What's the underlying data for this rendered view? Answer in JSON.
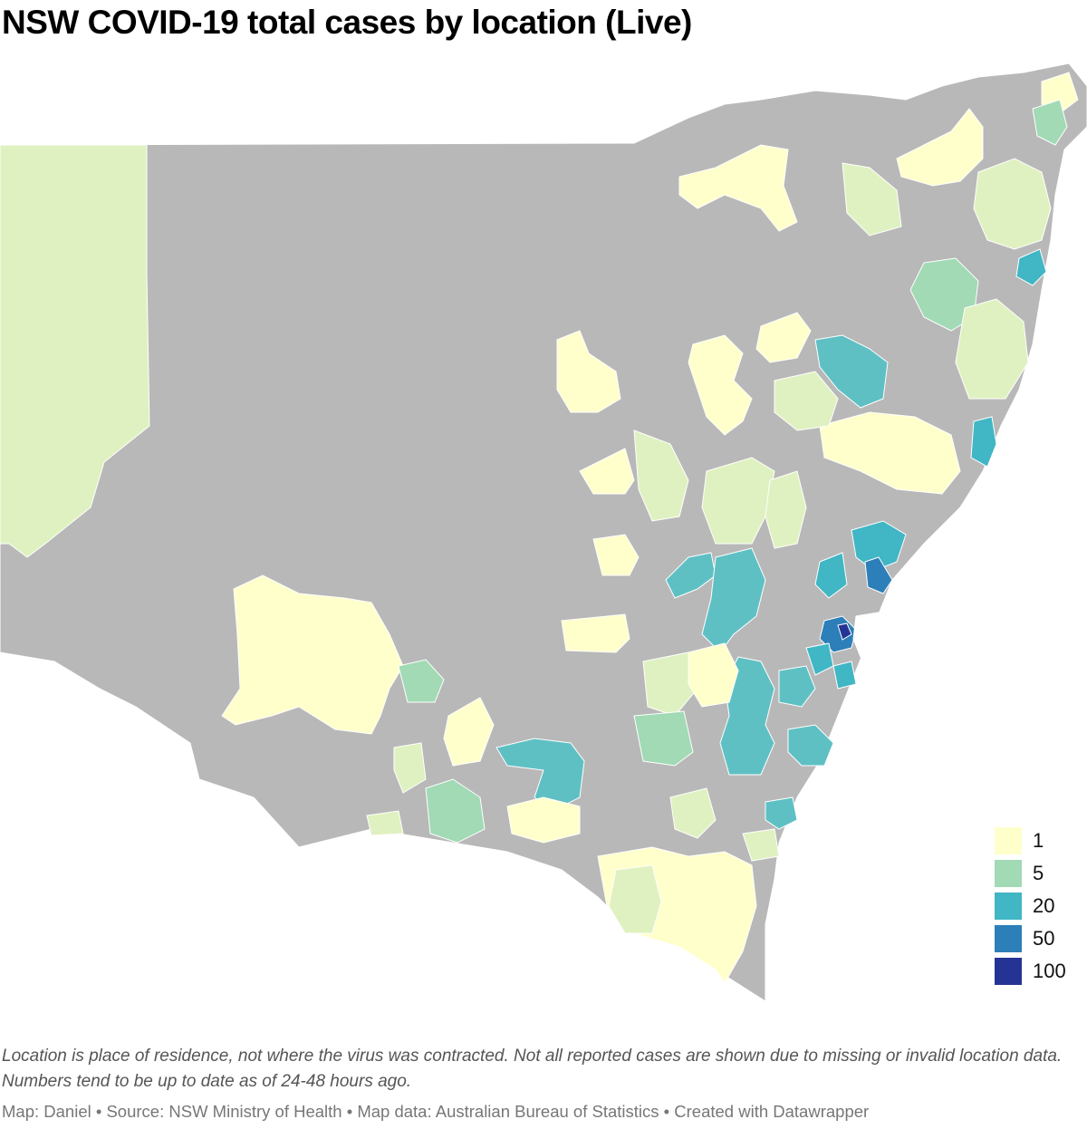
{
  "title": "NSW COVID-19 total cases by location (Live)",
  "legend": [
    {
      "label": "1",
      "color": "#ffffcc"
    },
    {
      "label": "5",
      "color": "#a1dab4"
    },
    {
      "label": "20",
      "color": "#41b6c4"
    },
    {
      "label": "50",
      "color": "#2c7fb8"
    },
    {
      "label": "100",
      "color": "#253494"
    }
  ],
  "colors": {
    "no_data": "#b8b8b8",
    "pale_green": "#dff1c0",
    "pale_yellow": "#ffffcc",
    "mid_green": "#a1dab4",
    "teal": "#5fc0c4",
    "blue": "#2c7fb8"
  },
  "notes": "Location is place of residence, not where the virus was contracted. Not all reported cases are shown due to missing or invalid location data. Numbers tend to be up to date as of 24-48 hours ago.",
  "footer": "Map: Daniel • Source: NSW Ministry of Health • Map data: Australian Bureau of Statistics • Created with Datawrapper"
}
